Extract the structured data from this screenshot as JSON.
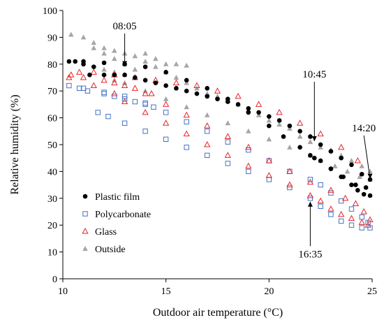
{
  "chart_data": {
    "type": "scatter",
    "title": "",
    "xlabel": "Outdoor air temperature (°C)",
    "ylabel": "Relative humidity (%)",
    "xlim": [
      10,
      25
    ],
    "ylim": [
      0,
      100
    ],
    "xticks": [
      "10",
      "15",
      "20",
      "25"
    ],
    "yticks": [
      "0",
      "10",
      "20",
      "30",
      "40",
      "50",
      "60",
      "70",
      "80",
      "90",
      "100"
    ],
    "grid": false,
    "legend_position": "bottom-left",
    "series": [
      {
        "name": "Plastic film",
        "marker": "filled-circle",
        "color": "#000000",
        "points": [
          [
            10.3,
            81
          ],
          [
            10.6,
            81
          ],
          [
            11.0,
            80
          ],
          [
            11.5,
            79
          ],
          [
            11.3,
            76
          ],
          [
            12.0,
            76
          ],
          [
            12.5,
            76
          ],
          [
            13.0,
            76
          ],
          [
            13.5,
            75
          ],
          [
            14.0,
            74
          ],
          [
            14.5,
            73
          ],
          [
            15.0,
            72
          ],
          [
            15.5,
            71
          ],
          [
            16.0,
            70
          ],
          [
            16.5,
            69
          ],
          [
            17.0,
            68
          ],
          [
            17.5,
            67
          ],
          [
            18.0,
            66
          ],
          [
            18.5,
            65
          ],
          [
            19.0,
            63.5
          ],
          [
            19.5,
            62
          ],
          [
            20.0,
            60.5
          ],
          [
            20.5,
            59
          ],
          [
            21.0,
            57
          ],
          [
            21.5,
            55
          ],
          [
            22.0,
            53
          ],
          [
            22.5,
            50
          ],
          [
            23.0,
            47.5
          ],
          [
            23.5,
            45
          ],
          [
            24.0,
            42.5
          ],
          [
            24.5,
            39
          ],
          [
            24.9,
            37
          ],
          [
            24.7,
            34
          ],
          [
            24.2,
            35
          ],
          [
            23.6,
            38
          ],
          [
            23.0,
            41
          ],
          [
            22.2,
            45
          ],
          [
            21.5,
            49
          ],
          [
            20.7,
            53
          ],
          [
            20.0,
            57
          ],
          [
            19.0,
            62
          ],
          [
            18.0,
            67
          ],
          [
            17.0,
            71
          ],
          [
            16.0,
            74
          ],
          [
            15.0,
            77
          ],
          [
            14.0,
            79
          ],
          [
            13.0,
            80
          ],
          [
            12.0,
            80.5
          ],
          [
            11.0,
            81
          ],
          [
            22.0,
            46
          ],
          [
            22.5,
            44
          ],
          [
            23.0,
            41
          ],
          [
            23.5,
            38
          ],
          [
            24.0,
            35
          ],
          [
            24.3,
            33
          ],
          [
            24.6,
            31.5
          ],
          [
            24.9,
            31
          ]
        ]
      },
      {
        "name": "Polycarbonate",
        "marker": "open-square",
        "color": "#4472c4",
        "points": [
          [
            10.3,
            72
          ],
          [
            10.8,
            71
          ],
          [
            11.2,
            70
          ],
          [
            12.0,
            69
          ],
          [
            12.5,
            68
          ],
          [
            13.0,
            67
          ],
          [
            13.5,
            66
          ],
          [
            14.0,
            65
          ],
          [
            14.4,
            64
          ],
          [
            11.7,
            62
          ],
          [
            12.2,
            60.5
          ],
          [
            13.0,
            58
          ],
          [
            14.0,
            55
          ],
          [
            15.0,
            52
          ],
          [
            16.0,
            49
          ],
          [
            17.0,
            46
          ],
          [
            18.0,
            43
          ],
          [
            19.0,
            40
          ],
          [
            20.0,
            37
          ],
          [
            21.0,
            34
          ],
          [
            22.0,
            30
          ],
          [
            22.5,
            27
          ],
          [
            23.0,
            24
          ],
          [
            23.5,
            21.5
          ],
          [
            24.0,
            20
          ],
          [
            24.5,
            19
          ],
          [
            24.9,
            19
          ],
          [
            24.8,
            21
          ],
          [
            24.5,
            23
          ],
          [
            24.0,
            26
          ],
          [
            23.5,
            29
          ],
          [
            23.0,
            32
          ],
          [
            22.5,
            35
          ],
          [
            22.0,
            37
          ],
          [
            21.0,
            40
          ],
          [
            20.0,
            44
          ],
          [
            19.0,
            48
          ],
          [
            18.0,
            51
          ],
          [
            17.0,
            55
          ],
          [
            16.0,
            58.5
          ],
          [
            15.0,
            62
          ],
          [
            14.0,
            65.5
          ],
          [
            13.0,
            68
          ],
          [
            12.0,
            69.5
          ],
          [
            11.0,
            71
          ]
        ]
      },
      {
        "name": "Glass",
        "marker": "open-triangle",
        "color": "#e8232a",
        "points": [
          [
            10.4,
            76
          ],
          [
            10.8,
            77
          ],
          [
            11.5,
            77
          ],
          [
            12.5,
            76
          ],
          [
            13.5,
            75
          ],
          [
            14.5,
            74
          ],
          [
            15.5,
            73
          ],
          [
            16.5,
            72
          ],
          [
            17.5,
            70
          ],
          [
            18.5,
            68
          ],
          [
            19.5,
            65
          ],
          [
            20.5,
            62
          ],
          [
            21.5,
            58
          ],
          [
            22.5,
            54
          ],
          [
            23.5,
            49
          ],
          [
            24.3,
            44
          ],
          [
            10.3,
            75
          ],
          [
            11.5,
            72
          ],
          [
            12.5,
            69
          ],
          [
            13.0,
            66
          ],
          [
            14.0,
            62
          ],
          [
            15.0,
            58
          ],
          [
            16.0,
            54
          ],
          [
            17.0,
            50
          ],
          [
            18.0,
            46
          ],
          [
            19.0,
            42
          ],
          [
            20.0,
            38.5
          ],
          [
            21.0,
            35
          ],
          [
            22.0,
            31
          ],
          [
            22.5,
            29
          ],
          [
            23.0,
            26
          ],
          [
            23.5,
            24
          ],
          [
            24.0,
            22.5
          ],
          [
            24.5,
            21
          ],
          [
            24.8,
            20
          ],
          [
            24.9,
            22
          ],
          [
            24.6,
            25
          ],
          [
            24.2,
            28
          ],
          [
            23.7,
            30
          ],
          [
            23.0,
            33
          ],
          [
            22.0,
            36
          ],
          [
            21.0,
            40
          ],
          [
            20.0,
            44
          ],
          [
            19.0,
            49
          ],
          [
            18.0,
            53
          ],
          [
            17.0,
            57
          ],
          [
            16.0,
            61
          ],
          [
            15.0,
            65
          ],
          [
            14.0,
            69
          ],
          [
            13.0,
            72
          ],
          [
            12.0,
            74
          ],
          [
            11.0,
            75
          ],
          [
            12.5,
            73
          ],
          [
            13.5,
            71
          ],
          [
            14.3,
            69
          ]
        ]
      },
      {
        "name": "Outside",
        "marker": "filled-triangle",
        "color": "#a6a6a6",
        "points": [
          [
            10.4,
            91
          ],
          [
            11.0,
            90
          ],
          [
            11.5,
            88
          ],
          [
            12.0,
            86
          ],
          [
            12.5,
            85
          ],
          [
            13.0,
            84
          ],
          [
            13.5,
            83
          ],
          [
            14.0,
            81
          ],
          [
            14.5,
            79
          ],
          [
            15.0,
            77
          ],
          [
            15.5,
            75
          ],
          [
            16.0,
            73
          ],
          [
            16.5,
            71
          ],
          [
            17.0,
            69
          ],
          [
            17.5,
            68
          ],
          [
            18.0,
            66.5
          ],
          [
            18.5,
            65
          ],
          [
            19.0,
            63
          ],
          [
            19.5,
            61
          ],
          [
            20.0,
            59
          ],
          [
            20.5,
            57.5
          ],
          [
            21.0,
            56
          ],
          [
            21.5,
            53
          ],
          [
            22.0,
            51
          ],
          [
            22.5,
            49
          ],
          [
            23.0,
            48
          ],
          [
            23.5,
            46
          ],
          [
            24.0,
            44
          ],
          [
            24.5,
            42
          ],
          [
            24.9,
            40
          ],
          [
            24.9,
            37
          ],
          [
            24.4,
            38
          ],
          [
            23.8,
            40
          ],
          [
            23.2,
            42
          ],
          [
            22.5,
            44
          ],
          [
            22.0,
            46
          ],
          [
            21.0,
            49
          ],
          [
            20.0,
            52
          ],
          [
            19.0,
            55
          ],
          [
            18.0,
            58
          ],
          [
            17.0,
            61
          ],
          [
            16.0,
            64
          ],
          [
            15.0,
            67
          ],
          [
            14.0,
            70
          ],
          [
            13.0,
            73
          ],
          [
            12.5,
            74
          ],
          [
            12.0,
            78
          ],
          [
            12.5,
            77
          ],
          [
            13.0,
            76
          ],
          [
            11.5,
            86
          ],
          [
            12.0,
            84
          ],
          [
            12.5,
            82
          ],
          [
            13.0,
            80
          ],
          [
            13.5,
            78
          ],
          [
            14.0,
            84
          ],
          [
            14.5,
            82
          ],
          [
            15.0,
            80
          ],
          [
            15.5,
            80
          ],
          [
            16.0,
            79.5
          ]
        ]
      }
    ],
    "annotations": [
      {
        "text": "08:05",
        "x": 13.0,
        "y": 78,
        "label_x": 13.0,
        "label_y": 93
      },
      {
        "text": "10:45",
        "x": 22.2,
        "y": 50,
        "label_x": 22.2,
        "label_y": 75
      },
      {
        "text": "14:20",
        "x": 24.9,
        "y": 36,
        "label_x": 24.6,
        "label_y": 55
      },
      {
        "text": "16:35",
        "x": 22.0,
        "y": 30,
        "label_x": 22.0,
        "label_y": 8
      }
    ]
  }
}
